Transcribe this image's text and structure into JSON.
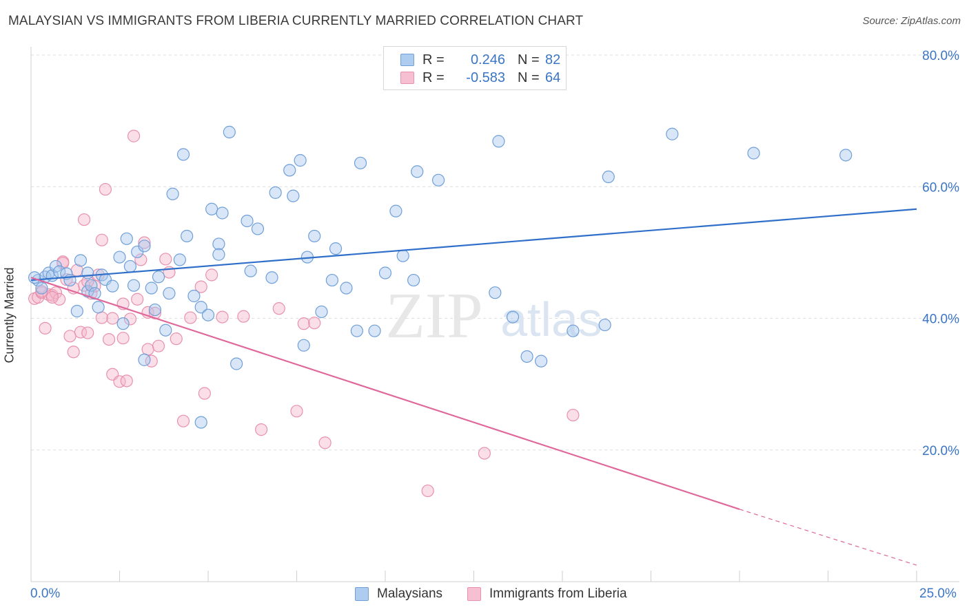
{
  "header": {
    "title": "MALAYSIAN VS IMMIGRANTS FROM LIBERIA CURRENTLY MARRIED CORRELATION CHART",
    "source": "Source: ZipAtlas.com"
  },
  "watermark": {
    "zip": "ZIP",
    "atlas": "atlas"
  },
  "legend": {
    "rows": [
      {
        "r_label": "R =",
        "r_value": "0.246",
        "n_label": "N =",
        "n_value": "82",
        "color": "#aecbf0",
        "border": "#6f9fd8"
      },
      {
        "r_label": "R =",
        "r_value": "-0.583",
        "n_label": "N =",
        "n_value": "64",
        "color": "#f7c0d2",
        "border": "#e891ad"
      }
    ]
  },
  "bottom_legend": {
    "series_a": "Malaysians",
    "series_b": "Immigrants from Liberia"
  },
  "colors": {
    "blue_fill": "#a8c8ee",
    "blue_stroke": "#6f9fd8",
    "blue_line": "#2f6fca",
    "pink_fill": "#f5b9cc",
    "pink_stroke": "#e891ad",
    "pink_line": "#e0679a",
    "grid": "#dddddd",
    "axis_text": "#3a75c4"
  },
  "chart_data": {
    "type": "scatter",
    "title": "MALAYSIAN VS IMMIGRANTS FROM LIBERIA CURRENTLY MARRIED CORRELATION CHART",
    "xlabel": "",
    "ylabel": "Currently Married",
    "xlim": [
      0,
      25
    ],
    "ylim": [
      0,
      80
    ],
    "x_tick_labels": [
      "0.0%",
      "25.0%"
    ],
    "y_ticks": [
      20,
      40,
      60,
      80
    ],
    "y_tick_labels": [
      "20.0%",
      "40.0%",
      "60.0%",
      "80.0%"
    ],
    "series": [
      {
        "name": "Malaysians",
        "r": 0.246,
        "n": 82,
        "trend": {
          "x": [
            0,
            25
          ],
          "y": [
            45.8,
            56.6
          ]
        },
        "points": [
          [
            0.2,
            45.8
          ],
          [
            0.3,
            44.6
          ],
          [
            0.4,
            46.3
          ],
          [
            0.5,
            46.9
          ],
          [
            0.6,
            46.5
          ],
          [
            0.7,
            47.9
          ],
          [
            0.8,
            47.1
          ],
          [
            1.0,
            46.8
          ],
          [
            1.1,
            45.8
          ],
          [
            1.3,
            41.1
          ],
          [
            1.4,
            48.8
          ],
          [
            1.6,
            44.1
          ],
          [
            1.6,
            46.9
          ],
          [
            1.7,
            45.0
          ],
          [
            1.8,
            43.8
          ],
          [
            1.9,
            41.7
          ],
          [
            2.0,
            46.6
          ],
          [
            2.1,
            45.9
          ],
          [
            2.3,
            44.9
          ],
          [
            2.5,
            49.3
          ],
          [
            2.6,
            39.2
          ],
          [
            2.7,
            52.1
          ],
          [
            2.8,
            47.9
          ],
          [
            2.9,
            45.0
          ],
          [
            3.0,
            50.1
          ],
          [
            3.2,
            51.0
          ],
          [
            3.2,
            33.7
          ],
          [
            3.4,
            44.6
          ],
          [
            3.5,
            41.3
          ],
          [
            3.6,
            46.3
          ],
          [
            3.8,
            38.2
          ],
          [
            3.9,
            43.8
          ],
          [
            4.0,
            58.9
          ],
          [
            4.2,
            48.9
          ],
          [
            4.3,
            64.9
          ],
          [
            4.4,
            52.5
          ],
          [
            4.6,
            43.4
          ],
          [
            4.8,
            41.7
          ],
          [
            4.8,
            24.2
          ],
          [
            5.0,
            40.5
          ],
          [
            5.1,
            56.6
          ],
          [
            5.3,
            51.3
          ],
          [
            5.3,
            49.7
          ],
          [
            5.4,
            56.0
          ],
          [
            5.6,
            68.3
          ],
          [
            5.8,
            33.1
          ],
          [
            6.1,
            54.8
          ],
          [
            6.2,
            47.2
          ],
          [
            6.4,
            53.6
          ],
          [
            6.8,
            46.2
          ],
          [
            6.9,
            59.1
          ],
          [
            7.3,
            62.5
          ],
          [
            7.4,
            58.6
          ],
          [
            7.6,
            64.0
          ],
          [
            7.7,
            35.9
          ],
          [
            7.8,
            49.3
          ],
          [
            8.0,
            52.5
          ],
          [
            8.2,
            41.0
          ],
          [
            8.5,
            45.8
          ],
          [
            8.6,
            50.6
          ],
          [
            8.9,
            44.6
          ],
          [
            9.2,
            38.1
          ],
          [
            9.3,
            63.6
          ],
          [
            9.7,
            38.1
          ],
          [
            10.0,
            46.9
          ],
          [
            10.3,
            56.3
          ],
          [
            10.5,
            49.5
          ],
          [
            10.8,
            45.8
          ],
          [
            10.9,
            62.3
          ],
          [
            11.5,
            61.0
          ],
          [
            13.1,
            43.9
          ],
          [
            13.2,
            66.9
          ],
          [
            13.6,
            40.2
          ],
          [
            14.0,
            34.2
          ],
          [
            14.4,
            33.5
          ],
          [
            15.3,
            38.1
          ],
          [
            16.2,
            39.0
          ],
          [
            16.3,
            61.5
          ],
          [
            18.1,
            68.0
          ],
          [
            20.4,
            65.1
          ],
          [
            23.0,
            64.8
          ],
          [
            0.1,
            46.2
          ]
        ]
      },
      {
        "name": "Immigrants from Liberia",
        "r": -0.583,
        "n": 64,
        "trend": {
          "x": [
            0,
            20
          ],
          "y": [
            46.2,
            11.0
          ]
        },
        "trend_dashed": {
          "x": [
            20,
            25
          ],
          "y": [
            11.0,
            2.5
          ]
        },
        "points": [
          [
            0.1,
            43.0
          ],
          [
            0.2,
            43.2
          ],
          [
            0.3,
            43.9
          ],
          [
            0.4,
            38.5
          ],
          [
            0.5,
            43.6
          ],
          [
            0.6,
            43.5
          ],
          [
            0.7,
            43.9
          ],
          [
            0.8,
            42.9
          ],
          [
            0.9,
            48.6
          ],
          [
            1.0,
            45.9
          ],
          [
            1.1,
            37.3
          ],
          [
            1.2,
            34.9
          ],
          [
            1.3,
            47.3
          ],
          [
            1.4,
            37.9
          ],
          [
            1.5,
            45.0
          ],
          [
            1.5,
            55.0
          ],
          [
            1.6,
            37.8
          ],
          [
            1.7,
            43.8
          ],
          [
            1.8,
            44.9
          ],
          [
            1.9,
            46.6
          ],
          [
            2.0,
            51.9
          ],
          [
            2.1,
            59.6
          ],
          [
            2.2,
            36.8
          ],
          [
            2.3,
            31.5
          ],
          [
            2.3,
            40.0
          ],
          [
            2.5,
            30.4
          ],
          [
            2.6,
            37.0
          ],
          [
            2.6,
            42.2
          ],
          [
            2.7,
            30.5
          ],
          [
            2.8,
            39.9
          ],
          [
            2.9,
            67.7
          ],
          [
            3.0,
            42.9
          ],
          [
            3.1,
            48.9
          ],
          [
            3.2,
            51.5
          ],
          [
            3.3,
            40.9
          ],
          [
            3.3,
            35.3
          ],
          [
            3.4,
            33.5
          ],
          [
            3.5,
            40.8
          ],
          [
            3.6,
            35.8
          ],
          [
            3.8,
            49.0
          ],
          [
            3.9,
            47.0
          ],
          [
            4.1,
            36.9
          ],
          [
            4.3,
            24.4
          ],
          [
            4.5,
            40.1
          ],
          [
            4.8,
            44.8
          ],
          [
            4.9,
            28.6
          ],
          [
            5.1,
            46.6
          ],
          [
            5.4,
            40.2
          ],
          [
            6.0,
            40.3
          ],
          [
            6.5,
            23.1
          ],
          [
            7.0,
            41.5
          ],
          [
            7.5,
            25.9
          ],
          [
            7.7,
            39.2
          ],
          [
            8.0,
            39.3
          ],
          [
            8.3,
            21.1
          ],
          [
            11.2,
            13.8
          ],
          [
            12.8,
            19.5
          ],
          [
            15.3,
            25.3
          ],
          [
            0.9,
            48.4
          ],
          [
            1.2,
            44.6
          ],
          [
            0.6,
            43.2
          ],
          [
            1.6,
            45.6
          ],
          [
            2.0,
            40.1
          ],
          [
            0.3,
            44.1
          ]
        ]
      }
    ]
  }
}
